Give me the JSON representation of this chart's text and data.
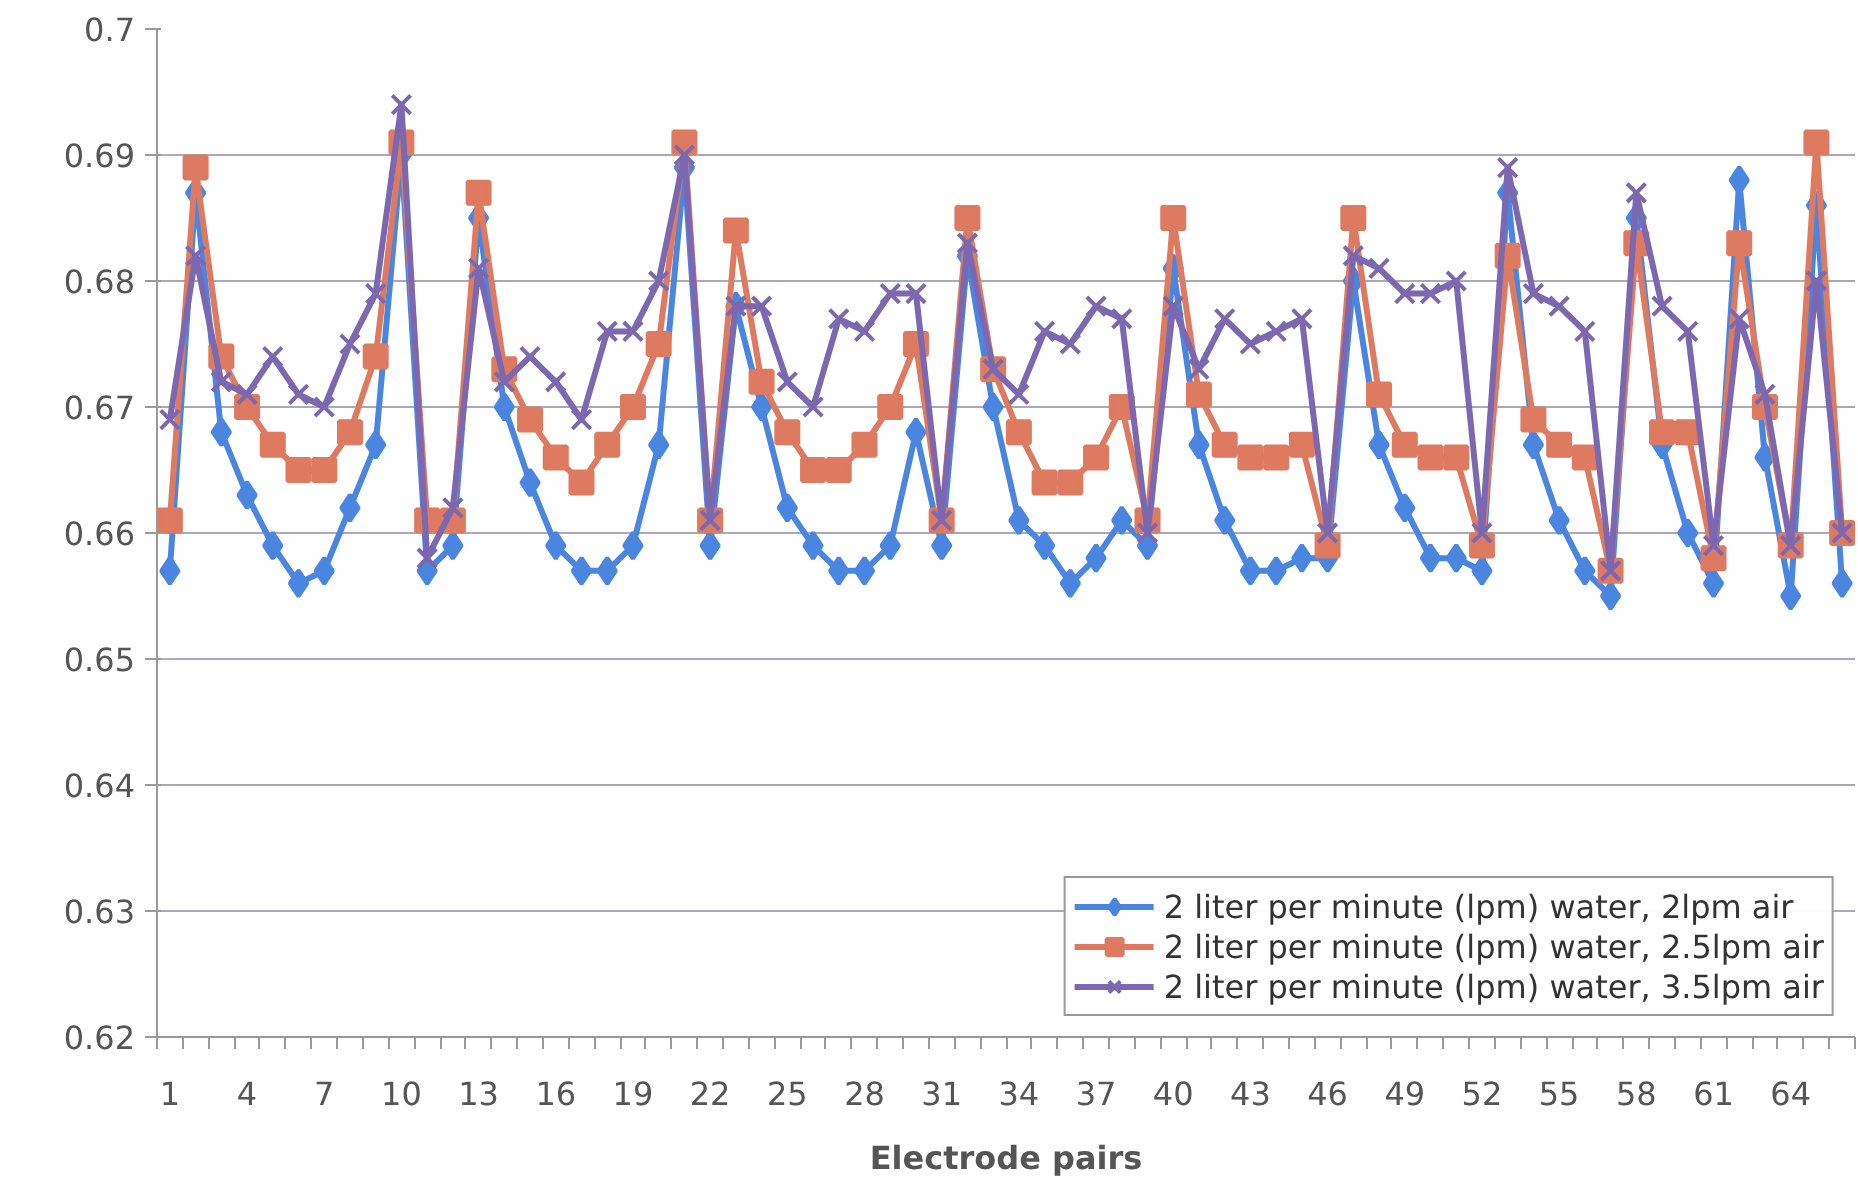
{
  "chart_data": {
    "type": "line",
    "xlabel": "Electrode pairs",
    "categories": [
      "1",
      null,
      null,
      "4",
      null,
      null,
      "7",
      null,
      null,
      "10",
      null,
      null,
      "13",
      null,
      null,
      "16",
      null,
      null,
      "19",
      null,
      null,
      "22",
      null,
      null,
      "25",
      null,
      null,
      "28",
      null,
      null,
      "31",
      null,
      null,
      "34",
      null,
      null,
      "37",
      null,
      null,
      "40",
      null,
      null,
      "43",
      null,
      null,
      "46",
      null,
      null,
      "49",
      null,
      null,
      "52",
      null,
      null,
      "55",
      null,
      null,
      "58",
      null,
      null,
      "61",
      null,
      null,
      "64",
      null,
      null
    ],
    "series": [
      {
        "name": "2 liter per minute (lpm) water, 2lpm air",
        "color": "#4a86e0",
        "marker": "diamond",
        "values": [
          0.657,
          0.687,
          0.668,
          0.663,
          0.659,
          0.656,
          0.657,
          0.662,
          0.667,
          0.69,
          0.657,
          0.659,
          0.685,
          0.67,
          0.664,
          0.659,
          0.657,
          0.657,
          0.659,
          0.667,
          0.689,
          0.659,
          0.678,
          0.67,
          0.662,
          0.659,
          0.657,
          0.657,
          0.659,
          0.668,
          0.659,
          0.682,
          0.67,
          0.661,
          0.659,
          0.656,
          0.658,
          0.661,
          0.659,
          0.681,
          0.667,
          0.661,
          0.657,
          0.657,
          0.658,
          0.658,
          0.68,
          0.667,
          0.662,
          0.658,
          0.658,
          0.657,
          0.687,
          0.667,
          0.661,
          0.657,
          0.655,
          0.685,
          0.667,
          0.66,
          0.656,
          0.688,
          0.666,
          0.655,
          0.686,
          0.656
        ]
      },
      {
        "name": "2 liter per minute (lpm) water, 2.5lpm air",
        "color": "#dd7a60",
        "marker": "square",
        "values": [
          0.661,
          0.689,
          0.674,
          0.67,
          0.667,
          0.665,
          0.665,
          0.668,
          0.674,
          0.691,
          0.661,
          0.661,
          0.687,
          0.673,
          0.669,
          0.666,
          0.664,
          0.667,
          0.67,
          0.675,
          0.691,
          0.661,
          0.684,
          0.672,
          0.668,
          0.665,
          0.665,
          0.667,
          0.67,
          0.675,
          0.661,
          0.685,
          0.673,
          0.668,
          0.664,
          0.664,
          0.666,
          0.67,
          0.661,
          0.685,
          0.671,
          0.667,
          0.666,
          0.666,
          0.667,
          0.659,
          0.685,
          0.671,
          0.667,
          0.666,
          0.666,
          0.659,
          0.682,
          0.669,
          0.667,
          0.666,
          0.657,
          0.683,
          0.668,
          0.668,
          0.658,
          0.683,
          0.67,
          0.659,
          0.691,
          0.66
        ]
      },
      {
        "name": "2 liter per minute (lpm) water, 3.5lpm air",
        "color": "#7b68b0",
        "marker": "cross",
        "values": [
          0.669,
          0.682,
          0.672,
          0.671,
          0.674,
          0.671,
          0.67,
          0.675,
          0.679,
          0.694,
          0.658,
          0.662,
          0.681,
          0.672,
          0.674,
          0.672,
          0.669,
          0.676,
          0.676,
          0.68,
          0.69,
          0.661,
          0.678,
          0.678,
          0.672,
          0.67,
          0.677,
          0.676,
          0.679,
          0.679,
          0.661,
          0.683,
          0.673,
          0.671,
          0.676,
          0.675,
          0.678,
          0.677,
          0.66,
          0.678,
          0.673,
          0.677,
          0.675,
          0.676,
          0.677,
          0.66,
          0.682,
          0.681,
          0.679,
          0.679,
          0.68,
          0.66,
          0.689,
          0.679,
          0.678,
          0.676,
          0.657,
          0.687,
          0.678,
          0.676,
          0.659,
          0.677,
          0.671,
          0.659,
          0.68,
          0.66
        ]
      }
    ],
    "ylim": [
      0.62,
      0.7
    ],
    "yticks": [
      0.62,
      0.63,
      0.64,
      0.65,
      0.66,
      0.67,
      0.68,
      0.69,
      0.7
    ],
    "grid": "y",
    "legend": "bottom right"
  }
}
